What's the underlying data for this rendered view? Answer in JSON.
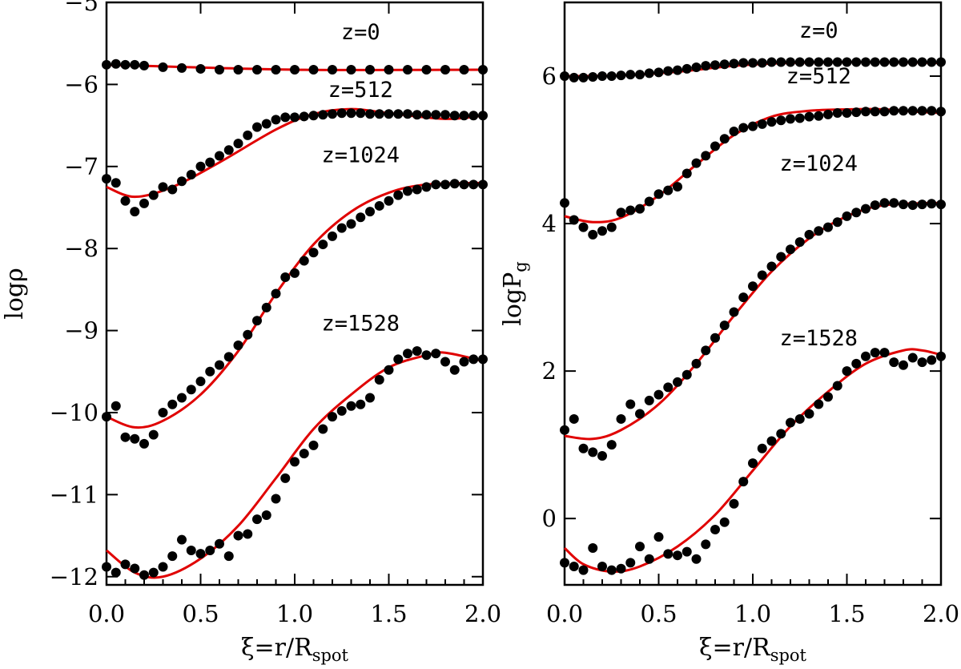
{
  "chart_data": [
    {
      "type": "scatter",
      "panel": "left",
      "xlabel_prefix": "ξ=r/R",
      "xlabel_sub": "spot",
      "ylabel": "logρ",
      "xlim": [
        0,
        2
      ],
      "ylim": [
        -12.1,
        -5
      ],
      "xticks": [
        0,
        0.5,
        1,
        1.5,
        2
      ],
      "xtick_labels": [
        "0.0",
        "0.5",
        "1.0",
        "1.5",
        "2.0"
      ],
      "yticks": [
        -12,
        -11,
        -10,
        -9,
        -8,
        -7,
        -6,
        -5
      ],
      "ytick_labels": [
        "−12",
        "−11",
        "−10",
        "−9",
        "−8",
        "−7",
        "−6",
        "−5"
      ],
      "series": [
        {
          "name": "z=0",
          "label_x": 1.35,
          "label_y": -5.45,
          "x": [
            0,
            0.05,
            0.1,
            0.15,
            0.2,
            0.3,
            0.4,
            0.5,
            0.6,
            0.7,
            0.8,
            0.9,
            1.0,
            1.1,
            1.2,
            1.3,
            1.4,
            1.5,
            1.6,
            1.7,
            1.8,
            1.9,
            2.0
          ],
          "values": [
            -5.76,
            -5.75,
            -5.76,
            -5.76,
            -5.77,
            -5.79,
            -5.8,
            -5.81,
            -5.82,
            -5.82,
            -5.82,
            -5.82,
            -5.82,
            -5.82,
            -5.82,
            -5.82,
            -5.82,
            -5.82,
            -5.82,
            -5.82,
            -5.82,
            -5.82,
            -5.82
          ],
          "fit": [
            [
              0,
              -5.76
            ],
            [
              1.0,
              -5.82
            ],
            [
              2.0,
              -5.82
            ]
          ]
        },
        {
          "name": "z=512",
          "label_x": 1.35,
          "label_y": -6.15,
          "x": [
            0,
            0.05,
            0.1,
            0.15,
            0.2,
            0.25,
            0.3,
            0.35,
            0.4,
            0.45,
            0.5,
            0.55,
            0.6,
            0.65,
            0.7,
            0.75,
            0.8,
            0.85,
            0.9,
            0.95,
            1.0,
            1.05,
            1.1,
            1.15,
            1.2,
            1.25,
            1.3,
            1.35,
            1.4,
            1.45,
            1.5,
            1.55,
            1.6,
            1.65,
            1.7,
            1.75,
            1.8,
            1.85,
            1.9,
            1.95,
            2.0
          ],
          "values": [
            -7.15,
            -7.2,
            -7.42,
            -7.55,
            -7.45,
            -7.35,
            -7.25,
            -7.28,
            -7.18,
            -7.1,
            -7.0,
            -6.95,
            -6.87,
            -6.8,
            -6.72,
            -6.62,
            -6.52,
            -6.48,
            -6.43,
            -6.4,
            -6.4,
            -6.39,
            -6.38,
            -6.37,
            -6.36,
            -6.35,
            -6.35,
            -6.35,
            -6.36,
            -6.36,
            -6.36,
            -6.36,
            -6.36,
            -6.37,
            -6.37,
            -6.37,
            -6.37,
            -6.38,
            -6.38,
            -6.38,
            -6.38
          ],
          "fit": [
            [
              0,
              -7.25
            ],
            [
              0.15,
              -7.37
            ],
            [
              0.35,
              -7.25
            ],
            [
              0.6,
              -6.95
            ],
            [
              0.9,
              -6.55
            ],
            [
              1.1,
              -6.36
            ],
            [
              1.3,
              -6.3
            ],
            [
              1.5,
              -6.35
            ],
            [
              1.8,
              -6.42
            ],
            [
              2.0,
              -6.38
            ]
          ]
        },
        {
          "name": "z=1024",
          "label_x": 1.35,
          "label_y": -6.95,
          "x": [
            0,
            0.05,
            0.1,
            0.15,
            0.2,
            0.25,
            0.3,
            0.35,
            0.4,
            0.45,
            0.5,
            0.55,
            0.6,
            0.65,
            0.7,
            0.75,
            0.8,
            0.85,
            0.9,
            0.95,
            1.0,
            1.05,
            1.1,
            1.15,
            1.2,
            1.25,
            1.3,
            1.35,
            1.4,
            1.45,
            1.5,
            1.55,
            1.6,
            1.65,
            1.7,
            1.75,
            1.8,
            1.85,
            1.9,
            1.95,
            2.0
          ],
          "values": [
            -10.05,
            -9.92,
            -10.3,
            -10.32,
            -10.38,
            -10.27,
            -10.0,
            -9.9,
            -9.82,
            -9.72,
            -9.62,
            -9.5,
            -9.42,
            -9.32,
            -9.18,
            -9.05,
            -8.88,
            -8.72,
            -8.55,
            -8.35,
            -8.3,
            -8.15,
            -8.05,
            -7.95,
            -7.85,
            -7.75,
            -7.7,
            -7.62,
            -7.55,
            -7.48,
            -7.42,
            -7.35,
            -7.3,
            -7.28,
            -7.25,
            -7.22,
            -7.22,
            -7.21,
            -7.22,
            -7.22,
            -7.22
          ],
          "fit": [
            [
              0,
              -10.05
            ],
            [
              0.15,
              -10.18
            ],
            [
              0.3,
              -10.1
            ],
            [
              0.5,
              -9.78
            ],
            [
              0.7,
              -9.25
            ],
            [
              0.9,
              -8.55
            ],
            [
              1.1,
              -7.95
            ],
            [
              1.3,
              -7.55
            ],
            [
              1.5,
              -7.32
            ],
            [
              1.7,
              -7.22
            ],
            [
              2.0,
              -7.2
            ]
          ]
        },
        {
          "name": "z=1528",
          "label_x": 1.35,
          "label_y": -9.0,
          "x": [
            0,
            0.05,
            0.1,
            0.15,
            0.2,
            0.25,
            0.3,
            0.35,
            0.4,
            0.45,
            0.5,
            0.55,
            0.6,
            0.65,
            0.7,
            0.75,
            0.8,
            0.85,
            0.9,
            0.95,
            1.0,
            1.05,
            1.1,
            1.15,
            1.2,
            1.25,
            1.3,
            1.35,
            1.4,
            1.45,
            1.5,
            1.55,
            1.6,
            1.65,
            1.7,
            1.75,
            1.8,
            1.85,
            1.9,
            1.95,
            2.0
          ],
          "values": [
            -11.88,
            -11.95,
            -11.85,
            -11.9,
            -11.98,
            -11.95,
            -11.88,
            -11.75,
            -11.55,
            -11.68,
            -11.72,
            -11.68,
            -11.6,
            -11.75,
            -11.5,
            -11.48,
            -11.3,
            -11.25,
            -11.05,
            -10.8,
            -10.6,
            -10.5,
            -10.4,
            -10.2,
            -10.05,
            -9.98,
            -9.92,
            -9.9,
            -9.82,
            -9.6,
            -9.48,
            -9.35,
            -9.28,
            -9.25,
            -9.3,
            -9.28,
            -9.38,
            -9.48,
            -9.38,
            -9.35,
            -9.35
          ],
          "fit": [
            [
              0,
              -11.68
            ],
            [
              0.15,
              -11.95
            ],
            [
              0.3,
              -12.0
            ],
            [
              0.5,
              -11.78
            ],
            [
              0.7,
              -11.38
            ],
            [
              0.9,
              -10.8
            ],
            [
              1.1,
              -10.2
            ],
            [
              1.3,
              -9.78
            ],
            [
              1.5,
              -9.45
            ],
            [
              1.7,
              -9.3
            ],
            [
              1.8,
              -9.27
            ],
            [
              2.0,
              -9.37
            ]
          ]
        }
      ]
    },
    {
      "type": "scatter",
      "panel": "right",
      "xlabel_prefix": "ξ=r/R",
      "xlabel_sub": "spot",
      "ylabel_prefix": "logP",
      "ylabel_sub": "g",
      "xlim": [
        0,
        2
      ],
      "ylim": [
        -0.9,
        7
      ],
      "xticks": [
        0,
        0.5,
        1,
        1.5,
        2
      ],
      "xtick_labels": [
        "0.0",
        "0.5",
        "1.0",
        "1.5",
        "2.0"
      ],
      "yticks": [
        0,
        2,
        4,
        6
      ],
      "ytick_labels": [
        "0",
        "2",
        "4",
        "6"
      ],
      "series": [
        {
          "name": "z=0",
          "label_x": 1.35,
          "label_y": 6.52,
          "x": [
            0,
            0.05,
            0.1,
            0.15,
            0.2,
            0.25,
            0.3,
            0.35,
            0.4,
            0.45,
            0.5,
            0.55,
            0.6,
            0.65,
            0.7,
            0.75,
            0.8,
            0.85,
            0.9,
            0.95,
            1.0,
            1.05,
            1.1,
            1.15,
            1.2,
            1.25,
            1.3,
            1.35,
            1.4,
            1.45,
            1.5,
            1.55,
            1.6,
            1.65,
            1.7,
            1.75,
            1.8,
            1.85,
            1.9,
            1.95,
            2.0
          ],
          "values": [
            6.0,
            5.98,
            5.98,
            5.99,
            6.0,
            6.0,
            6.01,
            6.02,
            6.02,
            6.04,
            6.05,
            6.07,
            6.08,
            6.1,
            6.12,
            6.14,
            6.15,
            6.16,
            6.17,
            6.18,
            6.18,
            6.18,
            6.19,
            6.19,
            6.19,
            6.19,
            6.19,
            6.19,
            6.19,
            6.19,
            6.19,
            6.19,
            6.19,
            6.19,
            6.19,
            6.19,
            6.19,
            6.19,
            6.19,
            6.19,
            6.19
          ],
          "fit": [
            [
              0,
              6.0
            ],
            [
              0.3,
              6.01
            ],
            [
              0.6,
              6.06
            ],
            [
              0.9,
              6.14
            ],
            [
              1.2,
              6.18
            ],
            [
              1.6,
              6.19
            ],
            [
              2.0,
              6.18
            ]
          ]
        },
        {
          "name": "z=512",
          "label_x": 1.35,
          "label_y": 5.9,
          "x": [
            0,
            0.05,
            0.1,
            0.15,
            0.2,
            0.25,
            0.3,
            0.35,
            0.4,
            0.45,
            0.5,
            0.55,
            0.6,
            0.65,
            0.7,
            0.75,
            0.8,
            0.85,
            0.9,
            0.95,
            1.0,
            1.05,
            1.1,
            1.15,
            1.2,
            1.25,
            1.3,
            1.35,
            1.4,
            1.45,
            1.5,
            1.55,
            1.6,
            1.65,
            1.7,
            1.75,
            1.8,
            1.85,
            1.9,
            1.95,
            2.0
          ],
          "values": [
            4.28,
            4.05,
            3.95,
            3.85,
            3.9,
            3.95,
            4.15,
            4.18,
            4.2,
            4.3,
            4.4,
            4.45,
            4.5,
            4.68,
            4.82,
            4.92,
            5.05,
            5.15,
            5.25,
            5.3,
            5.32,
            5.35,
            5.38,
            5.4,
            5.42,
            5.43,
            5.45,
            5.46,
            5.48,
            5.5,
            5.5,
            5.51,
            5.52,
            5.52,
            5.52,
            5.53,
            5.53,
            5.53,
            5.53,
            5.53,
            5.52
          ],
          "fit": [
            [
              0,
              4.1
            ],
            [
              0.15,
              4.02
            ],
            [
              0.3,
              4.08
            ],
            [
              0.5,
              4.38
            ],
            [
              0.7,
              4.8
            ],
            [
              0.9,
              5.2
            ],
            [
              1.1,
              5.45
            ],
            [
              1.3,
              5.53
            ],
            [
              1.5,
              5.55
            ],
            [
              1.7,
              5.55
            ],
            [
              1.85,
              5.52
            ],
            [
              2.0,
              5.5
            ]
          ]
        },
        {
          "name": "z=1024",
          "label_x": 1.35,
          "label_y": 4.72,
          "x": [
            0,
            0.05,
            0.1,
            0.15,
            0.2,
            0.25,
            0.3,
            0.35,
            0.4,
            0.45,
            0.5,
            0.55,
            0.6,
            0.65,
            0.7,
            0.75,
            0.8,
            0.85,
            0.9,
            0.95,
            1.0,
            1.05,
            1.1,
            1.15,
            1.2,
            1.25,
            1.3,
            1.35,
            1.4,
            1.45,
            1.5,
            1.55,
            1.6,
            1.65,
            1.7,
            1.75,
            1.8,
            1.85,
            1.9,
            1.95,
            2.0
          ],
          "values": [
            1.2,
            1.35,
            0.95,
            0.9,
            0.85,
            1.0,
            1.35,
            1.55,
            1.42,
            1.6,
            1.68,
            1.78,
            1.85,
            1.95,
            2.1,
            2.28,
            2.45,
            2.62,
            2.8,
            3.0,
            3.15,
            3.3,
            3.42,
            3.55,
            3.65,
            3.75,
            3.85,
            3.9,
            3.95,
            4.02,
            4.1,
            4.15,
            4.2,
            4.25,
            4.28,
            4.28,
            4.26,
            4.25,
            4.26,
            4.27,
            4.26
          ],
          "fit": [
            [
              0,
              1.12
            ],
            [
              0.15,
              1.08
            ],
            [
              0.3,
              1.2
            ],
            [
              0.5,
              1.55
            ],
            [
              0.7,
              2.1
            ],
            [
              0.9,
              2.75
            ],
            [
              1.1,
              3.35
            ],
            [
              1.3,
              3.8
            ],
            [
              1.5,
              4.1
            ],
            [
              1.7,
              4.25
            ],
            [
              2.0,
              4.28
            ]
          ]
        },
        {
          "name": "z=1528",
          "label_x": 1.35,
          "label_y": 2.35,
          "x": [
            0,
            0.05,
            0.1,
            0.15,
            0.2,
            0.25,
            0.3,
            0.35,
            0.4,
            0.45,
            0.5,
            0.55,
            0.6,
            0.65,
            0.7,
            0.75,
            0.8,
            0.85,
            0.9,
            0.95,
            1.0,
            1.05,
            1.1,
            1.15,
            1.2,
            1.25,
            1.3,
            1.35,
            1.4,
            1.45,
            1.5,
            1.55,
            1.6,
            1.65,
            1.7,
            1.75,
            1.8,
            1.85,
            1.9,
            1.95,
            2.0
          ],
          "values": [
            -0.6,
            -0.65,
            -0.7,
            -0.4,
            -0.65,
            -0.7,
            -0.68,
            -0.6,
            -0.38,
            -0.55,
            -0.25,
            -0.48,
            -0.5,
            -0.45,
            -0.55,
            -0.35,
            -0.15,
            -0.05,
            0.2,
            0.5,
            0.75,
            0.95,
            1.05,
            1.15,
            1.3,
            1.35,
            1.42,
            1.55,
            1.65,
            1.8,
            2.0,
            2.1,
            2.2,
            2.25,
            2.25,
            2.12,
            2.08,
            2.18,
            2.12,
            2.15,
            2.2
          ],
          "fit": [
            [
              0,
              -0.4
            ],
            [
              0.1,
              -0.62
            ],
            [
              0.25,
              -0.72
            ],
            [
              0.4,
              -0.65
            ],
            [
              0.6,
              -0.38
            ],
            [
              0.8,
              0.05
            ],
            [
              1.0,
              0.65
            ],
            [
              1.2,
              1.25
            ],
            [
              1.4,
              1.72
            ],
            [
              1.6,
              2.1
            ],
            [
              1.8,
              2.28
            ],
            [
              1.9,
              2.28
            ],
            [
              2.0,
              2.22
            ]
          ]
        }
      ]
    }
  ]
}
